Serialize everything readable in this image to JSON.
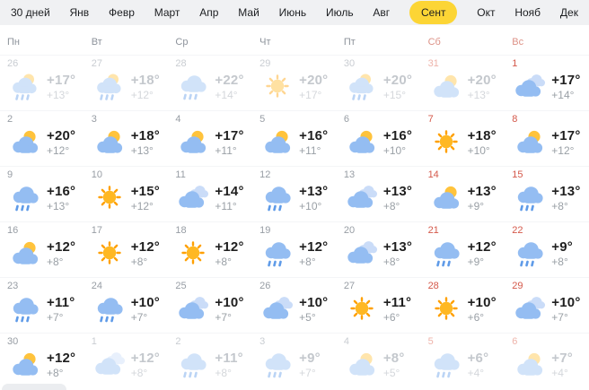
{
  "tabs": {
    "items": [
      {
        "id": "days30",
        "label": "30 дней",
        "selected": false
      },
      {
        "id": "jan",
        "label": "Янв",
        "selected": false
      },
      {
        "id": "feb",
        "label": "Февр",
        "selected": false
      },
      {
        "id": "mar",
        "label": "Март",
        "selected": false
      },
      {
        "id": "apr",
        "label": "Апр",
        "selected": false
      },
      {
        "id": "may",
        "label": "Май",
        "selected": false
      },
      {
        "id": "jun",
        "label": "Июнь",
        "selected": false
      },
      {
        "id": "jul",
        "label": "Июль",
        "selected": false
      },
      {
        "id": "aug",
        "label": "Авг",
        "selected": false
      },
      {
        "id": "sep",
        "label": "Сент",
        "selected": true
      },
      {
        "id": "oct",
        "label": "Окт",
        "selected": false
      },
      {
        "id": "nov",
        "label": "Нояб",
        "selected": false
      },
      {
        "id": "dec",
        "label": "Дек",
        "selected": false
      }
    ]
  },
  "weekdays": [
    {
      "label": "Пн",
      "weekend": false
    },
    {
      "label": "Вт",
      "weekend": false
    },
    {
      "label": "Ср",
      "weekend": false
    },
    {
      "label": "Чт",
      "weekend": false
    },
    {
      "label": "Пт",
      "weekend": false
    },
    {
      "label": "Сб",
      "weekend": true
    },
    {
      "label": "Вс",
      "weekend": true
    }
  ],
  "colors": {
    "accent_yellow": "#fcd535",
    "topbar_bg": "#f0f1f3",
    "weekend_red": "#d4584a",
    "weekend_header": "#dd9287",
    "cloud_front": "#94bdf2",
    "cloud_back": "#cadcf8",
    "rain_drop": "#5f9be8",
    "sun_fill": "#ffb823",
    "sun_ray": "#ffa000",
    "sun_behind": "#ffc33c"
  },
  "calendar": {
    "cells": [
      {
        "date": "26",
        "icon": "cloud-sun-rain",
        "day": "+17°",
        "night": "+13°",
        "faded": true,
        "weekend": false
      },
      {
        "date": "27",
        "icon": "cloud-sun-rain",
        "day": "+18°",
        "night": "+12°",
        "faded": true,
        "weekend": false
      },
      {
        "date": "28",
        "icon": "cloud-rain",
        "day": "+22°",
        "night": "+14°",
        "faded": true,
        "weekend": false
      },
      {
        "date": "29",
        "icon": "sun",
        "day": "+20°",
        "night": "+17°",
        "faded": true,
        "weekend": false
      },
      {
        "date": "30",
        "icon": "cloud-sun-rain",
        "day": "+20°",
        "night": "+15°",
        "faded": true,
        "weekend": false
      },
      {
        "date": "31",
        "icon": "cloud-sun",
        "day": "+20°",
        "night": "+13°",
        "faded": true,
        "weekend": true
      },
      {
        "date": "1",
        "icon": "cloudy",
        "day": "+17°",
        "night": "+14°",
        "faded": false,
        "weekend": true
      },
      {
        "date": "2",
        "icon": "cloud-sun",
        "day": "+20°",
        "night": "+12°",
        "faded": false,
        "weekend": false
      },
      {
        "date": "3",
        "icon": "cloud-sun",
        "day": "+18°",
        "night": "+13°",
        "faded": false,
        "weekend": false
      },
      {
        "date": "4",
        "icon": "cloud-sun",
        "day": "+17°",
        "night": "+11°",
        "faded": false,
        "weekend": false
      },
      {
        "date": "5",
        "icon": "cloud-sun",
        "day": "+16°",
        "night": "+11°",
        "faded": false,
        "weekend": false
      },
      {
        "date": "6",
        "icon": "cloud-sun",
        "day": "+16°",
        "night": "+10°",
        "faded": false,
        "weekend": false
      },
      {
        "date": "7",
        "icon": "sun",
        "day": "+18°",
        "night": "+10°",
        "faded": false,
        "weekend": true
      },
      {
        "date": "8",
        "icon": "cloud-sun",
        "day": "+17°",
        "night": "+12°",
        "faded": false,
        "weekend": true
      },
      {
        "date": "9",
        "icon": "cloud-rain",
        "day": "+16°",
        "night": "+13°",
        "faded": false,
        "weekend": false
      },
      {
        "date": "10",
        "icon": "sun",
        "day": "+15°",
        "night": "+12°",
        "faded": false,
        "weekend": false
      },
      {
        "date": "11",
        "icon": "cloudy",
        "day": "+14°",
        "night": "+11°",
        "faded": false,
        "weekend": false
      },
      {
        "date": "12",
        "icon": "cloud-rain",
        "day": "+13°",
        "night": "+10°",
        "faded": false,
        "weekend": false
      },
      {
        "date": "13",
        "icon": "cloudy",
        "day": "+13°",
        "night": "+8°",
        "faded": false,
        "weekend": false
      },
      {
        "date": "14",
        "icon": "cloud-sun",
        "day": "+13°",
        "night": "+9°",
        "faded": false,
        "weekend": true
      },
      {
        "date": "15",
        "icon": "cloud-rain",
        "day": "+13°",
        "night": "+8°",
        "faded": false,
        "weekend": true
      },
      {
        "date": "16",
        "icon": "cloud-sun",
        "day": "+12°",
        "night": "+8°",
        "faded": false,
        "weekend": false
      },
      {
        "date": "17",
        "icon": "sun",
        "day": "+12°",
        "night": "+8°",
        "faded": false,
        "weekend": false
      },
      {
        "date": "18",
        "icon": "sun",
        "day": "+12°",
        "night": "+8°",
        "faded": false,
        "weekend": false
      },
      {
        "date": "19",
        "icon": "cloud-rain",
        "day": "+12°",
        "night": "+8°",
        "faded": false,
        "weekend": false
      },
      {
        "date": "20",
        "icon": "cloudy",
        "day": "+13°",
        "night": "+8°",
        "faded": false,
        "weekend": false
      },
      {
        "date": "21",
        "icon": "cloud-rain",
        "day": "+12°",
        "night": "+9°",
        "faded": false,
        "weekend": true
      },
      {
        "date": "22",
        "icon": "cloud-rain",
        "day": "+9°",
        "night": "+8°",
        "faded": false,
        "weekend": true
      },
      {
        "date": "23",
        "icon": "cloud-rain",
        "day": "+11°",
        "night": "+7°",
        "faded": false,
        "weekend": false
      },
      {
        "date": "24",
        "icon": "cloud-rain",
        "day": "+10°",
        "night": "+7°",
        "faded": false,
        "weekend": false
      },
      {
        "date": "25",
        "icon": "cloudy",
        "day": "+10°",
        "night": "+7°",
        "faded": false,
        "weekend": false
      },
      {
        "date": "26",
        "icon": "cloudy",
        "day": "+10°",
        "night": "+5°",
        "faded": false,
        "weekend": false
      },
      {
        "date": "27",
        "icon": "sun",
        "day": "+11°",
        "night": "+6°",
        "faded": false,
        "weekend": false
      },
      {
        "date": "28",
        "icon": "sun",
        "day": "+10°",
        "night": "+6°",
        "faded": false,
        "weekend": true
      },
      {
        "date": "29",
        "icon": "cloudy",
        "day": "+10°",
        "night": "+7°",
        "faded": false,
        "weekend": true
      },
      {
        "date": "30",
        "icon": "cloud-sun",
        "day": "+12°",
        "night": "+8°",
        "faded": false,
        "weekend": false
      },
      {
        "date": "1",
        "icon": "cloudy",
        "day": "+12°",
        "night": "+8°",
        "faded": true,
        "weekend": false
      },
      {
        "date": "2",
        "icon": "cloud-rain",
        "day": "+11°",
        "night": "+8°",
        "faded": true,
        "weekend": false
      },
      {
        "date": "3",
        "icon": "cloud-rain",
        "day": "+9°",
        "night": "+7°",
        "faded": true,
        "weekend": false
      },
      {
        "date": "4",
        "icon": "cloud-sun",
        "day": "+8°",
        "night": "+5°",
        "faded": true,
        "weekend": false
      },
      {
        "date": "5",
        "icon": "cloud-rain",
        "day": "+6°",
        "night": "+4°",
        "faded": true,
        "weekend": true
      },
      {
        "date": "6",
        "icon": "cloud-sun",
        "day": "+7°",
        "night": "+4°",
        "faded": true,
        "weekend": true
      }
    ]
  }
}
